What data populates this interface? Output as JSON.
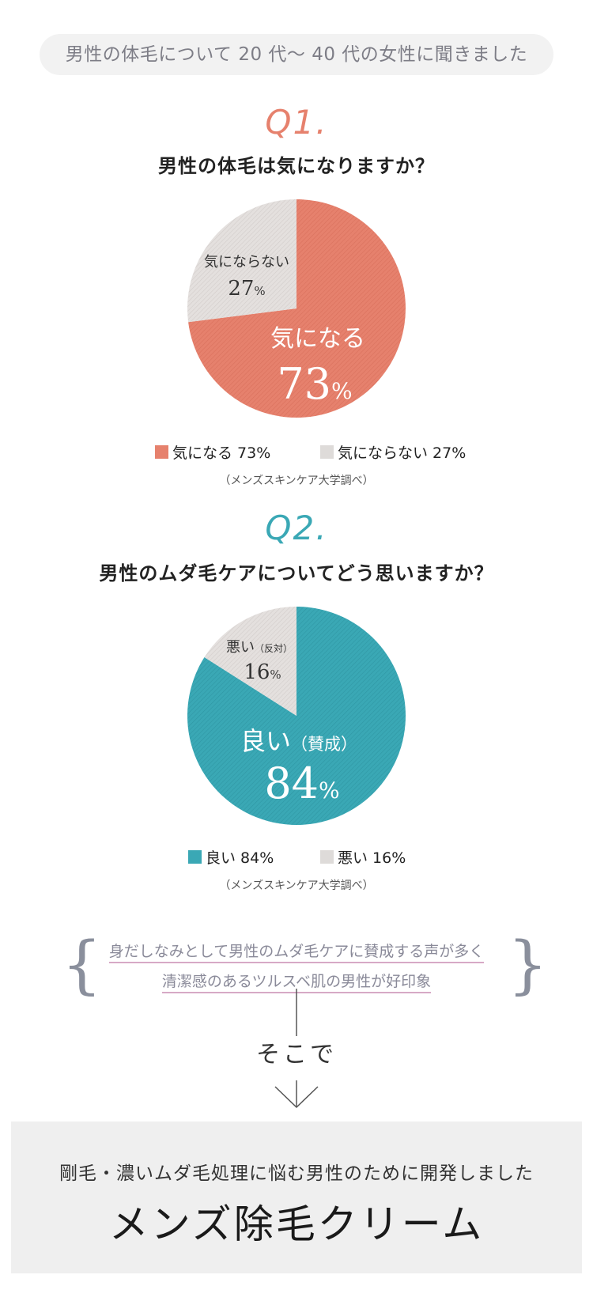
{
  "header": {
    "survey_label": "男性の体毛について 20 代〜 40 代の女性に聞きました"
  },
  "q1": {
    "number": "Q1.",
    "question": "男性の体毛は気になりますか？",
    "inner_labels": [
      {
        "name": "気になる",
        "pct_num": "73",
        "pct_unit": "%"
      },
      {
        "name": "気にならない",
        "pct_num": "27",
        "pct_unit": "%"
      }
    ],
    "legend": [
      "気になる 73%",
      "気にならない 27%"
    ],
    "source": "（メンズスキンケア大学調べ）"
  },
  "q2": {
    "number": "Q2.",
    "question": "男性のムダ毛ケアについてどう思いますか？",
    "inner_labels": [
      {
        "name": "良い",
        "note": "（賛成）",
        "pct_num": "84",
        "pct_unit": "%"
      },
      {
        "name": "悪い",
        "note": "（反対）",
        "pct_num": "16",
        "pct_unit": "%"
      }
    ],
    "legend": [
      "良い 84%",
      "悪い 16%"
    ],
    "source": "（メンズスキンケア大学調べ）"
  },
  "summary": {
    "lines": [
      "身だしなみとして男性のムダ毛ケアに賛成する声が多く",
      "清潔感のあるツルスベ肌の男性が好印象"
    ],
    "brace_left": "{",
    "brace_right": "}"
  },
  "connector": {
    "text": "そこで"
  },
  "product": {
    "subtitle": "剛毛・濃いムダ毛処理に悩む男性のために開発しました",
    "name": "メンズ除毛クリーム"
  },
  "colors": {
    "q1_accent": "#e6816d",
    "q2_accent": "#3aa8b5",
    "neutral": "#dedbd9"
  },
  "chart_data": [
    {
      "type": "pie",
      "title": "男性の体毛は気になりますか？",
      "categories": [
        "気になる",
        "気にならない"
      ],
      "values": [
        73,
        27
      ],
      "unit": "%",
      "colors": [
        "#e6816d",
        "#dedbd9"
      ],
      "legend_position": "bottom"
    },
    {
      "type": "pie",
      "title": "男性のムダ毛ケアについてどう思いますか？",
      "categories": [
        "良い",
        "悪い"
      ],
      "values": [
        84,
        16
      ],
      "unit": "%",
      "colors": [
        "#3aa8b5",
        "#dedbd9"
      ],
      "legend_position": "bottom"
    }
  ]
}
